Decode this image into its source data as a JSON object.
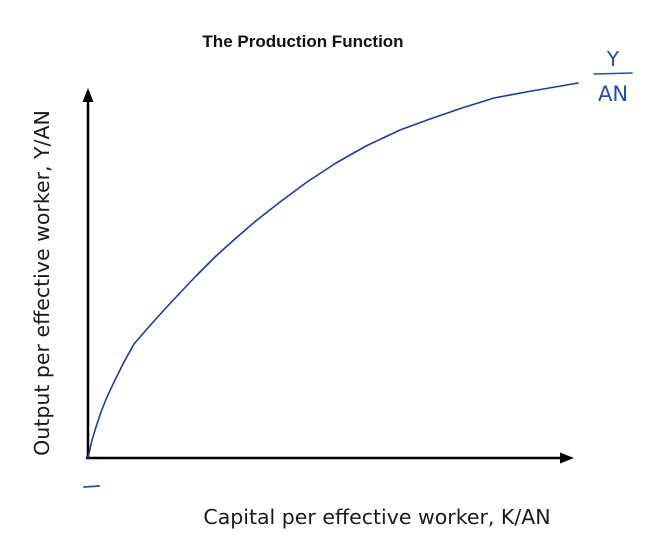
{
  "diagram": {
    "title": "The Production Function",
    "x_axis_label": "Capital per effective worker, K/AN",
    "y_axis_label": "Output per effective worker, Y/AN",
    "annotation": {
      "numerator": "Y",
      "denominator": "AN"
    },
    "colors": {
      "axes": "#000000",
      "curve": "#1a3f96",
      "annotation": "#1f4fa8",
      "text": "#111111"
    },
    "curve": {
      "shape": "concave, increasing, flattening"
    }
  }
}
